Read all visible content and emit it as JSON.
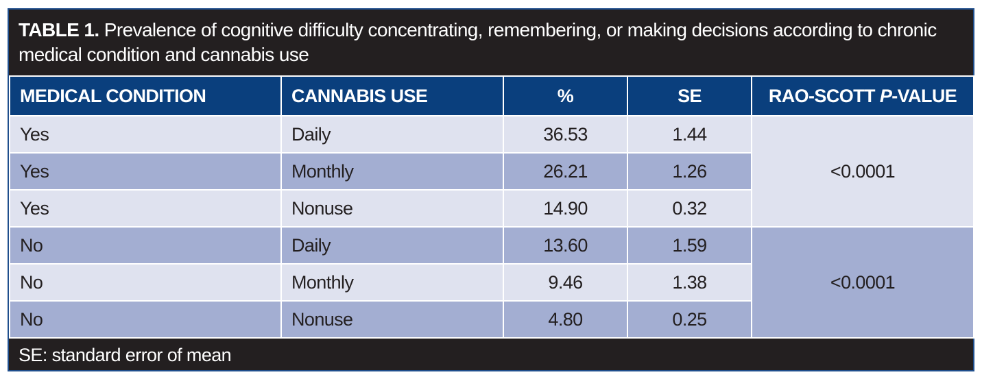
{
  "caption": {
    "label": "TABLE 1.",
    "text": "Prevalence of cognitive difficulty concentrating, remembering, or making decisions according to chronic medical condition and cannabis use"
  },
  "headers": {
    "medical_condition": "MEDICAL CONDITION",
    "cannabis_use": "CANNABIS USE",
    "percent": "%",
    "se": "SE",
    "p_value_prefix": "RAO-SCOTT ",
    "p_value_italic": "P",
    "p_value_suffix": "-VALUE"
  },
  "rows": [
    {
      "condition": "Yes",
      "use": "Daily",
      "percent": "36.53",
      "se": "1.44"
    },
    {
      "condition": "Yes",
      "use": "Monthly",
      "percent": "26.21",
      "se": "1.26"
    },
    {
      "condition": "Yes",
      "use": "Nonuse",
      "percent": "14.90",
      "se": "0.32"
    },
    {
      "condition": "No",
      "use": "Daily",
      "percent": "13.60",
      "se": "1.59"
    },
    {
      "condition": "No",
      "use": "Monthly",
      "percent": "9.46",
      "se": "1.38"
    },
    {
      "condition": "No",
      "use": "Nonuse",
      "percent": "4.80",
      "se": "0.25"
    }
  ],
  "p_values": {
    "yes_group": "<0.0001",
    "no_group": "<0.0001"
  },
  "footnote": "SE: standard error of mean",
  "colors": {
    "header_bg": "#0a3f7d",
    "caption_bg": "#231f20",
    "row_light": "#dfe2ef",
    "row_dark": "#a3aed2"
  }
}
